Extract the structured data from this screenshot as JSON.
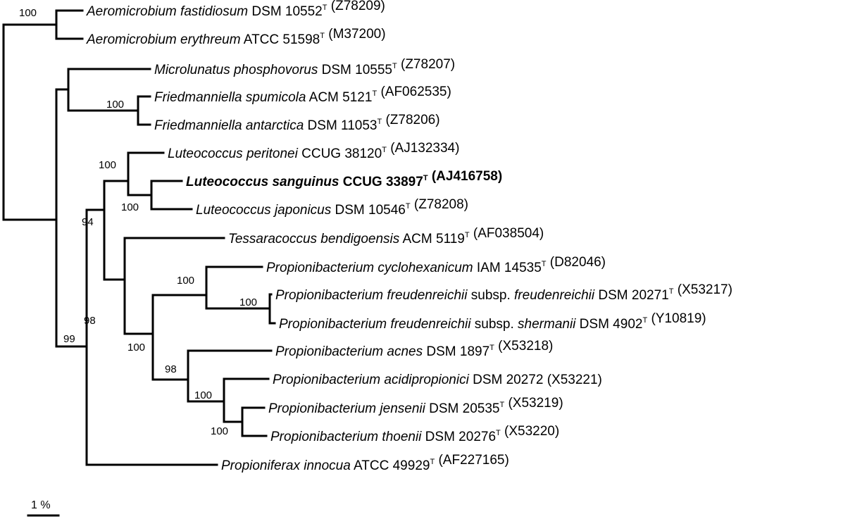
{
  "leaves": [
    {
      "id": "aero_fast",
      "segments": [
        {
          "t": "Aeromicrobium fastidiosum",
          "s": "i"
        },
        {
          "t": " DSM 10552"
        },
        {
          "t": "T",
          "s": "sup"
        },
        {
          "t": " (Z78209)"
        }
      ]
    },
    {
      "id": "aero_ery",
      "segments": [
        {
          "t": "Aeromicrobium erythreum",
          "s": "i"
        },
        {
          "t": " ATCC 51598"
        },
        {
          "t": "T",
          "s": "sup"
        },
        {
          "t": " (M37200)"
        }
      ]
    },
    {
      "id": "micro_phos",
      "segments": [
        {
          "t": "Microlunatus phosphovorus",
          "s": "i"
        },
        {
          "t": " DSM 10555"
        },
        {
          "t": "T",
          "s": "sup"
        },
        {
          "t": " (Z78207)"
        }
      ]
    },
    {
      "id": "fried_spum",
      "segments": [
        {
          "t": "Friedmanniella spumicola",
          "s": "i"
        },
        {
          "t": " ACM 5121"
        },
        {
          "t": "T",
          "s": "sup"
        },
        {
          "t": " (AF062535)"
        }
      ]
    },
    {
      "id": "fried_ant",
      "segments": [
        {
          "t": "Friedmanniella antarctica",
          "s": "i"
        },
        {
          "t": " DSM 11053"
        },
        {
          "t": "T",
          "s": "sup"
        },
        {
          "t": " (Z78206)"
        }
      ]
    },
    {
      "id": "luteo_per",
      "segments": [
        {
          "t": "Luteococcus peritonei",
          "s": "i"
        },
        {
          "t": " CCUG 38120"
        },
        {
          "t": "T",
          "s": "sup"
        },
        {
          "t": " (AJ132334)"
        }
      ]
    },
    {
      "id": "luteo_sang",
      "bold": true,
      "segments": [
        {
          "t": "Luteococcus sanguinus",
          "s": "i"
        },
        {
          "t": " CCUG 33897"
        },
        {
          "t": "T",
          "s": "sup"
        },
        {
          "t": " (AJ416758)"
        }
      ]
    },
    {
      "id": "luteo_jap",
      "segments": [
        {
          "t": "Luteococcus japonicus",
          "s": "i"
        },
        {
          "t": " DSM 10546"
        },
        {
          "t": "T",
          "s": "sup"
        },
        {
          "t": " (Z78208)"
        }
      ]
    },
    {
      "id": "tess_bend",
      "segments": [
        {
          "t": "Tessaracoccus bendigoensis",
          "s": "i"
        },
        {
          "t": " ACM 5119"
        },
        {
          "t": "T",
          "s": "sup"
        },
        {
          "t": " (AF038504)"
        }
      ]
    },
    {
      "id": "prop_cyc",
      "segments": [
        {
          "t": "Propionibacterium cyclohexanicum",
          "s": "i"
        },
        {
          "t": " IAM 14535"
        },
        {
          "t": "T",
          "s": "sup"
        },
        {
          "t": " (D82046)"
        }
      ]
    },
    {
      "id": "prop_freud",
      "segments": [
        {
          "t": "Propionibacterium freudenreichii",
          "s": "i"
        },
        {
          "t": " subsp. "
        },
        {
          "t": "freudenreichii",
          "s": "i"
        },
        {
          "t": " DSM 20271"
        },
        {
          "t": "T",
          "s": "sup"
        },
        {
          "t": " (X53217)"
        }
      ]
    },
    {
      "id": "prop_sherm",
      "segments": [
        {
          "t": "Propionibacterium freudenreichii",
          "s": "i"
        },
        {
          "t": " subsp. "
        },
        {
          "t": "shermanii",
          "s": "i"
        },
        {
          "t": " DSM 4902"
        },
        {
          "t": "T",
          "s": "sup"
        },
        {
          "t": " (Y10819)"
        }
      ]
    },
    {
      "id": "prop_acnes",
      "segments": [
        {
          "t": "Propionibacterium acnes",
          "s": "i"
        },
        {
          "t": " DSM 1897"
        },
        {
          "t": "T",
          "s": "sup"
        },
        {
          "t": " (X53218)"
        }
      ]
    },
    {
      "id": "prop_acidi",
      "segments": [
        {
          "t": "Propionibacterium acidipropionici",
          "s": "i"
        },
        {
          "t": " DSM 20272 (X53221)"
        }
      ]
    },
    {
      "id": "prop_jens",
      "segments": [
        {
          "t": "Propionibacterium jensenii",
          "s": "i"
        },
        {
          "t": " DSM 20535"
        },
        {
          "t": "T",
          "s": "sup"
        },
        {
          "t": " (X53219)"
        }
      ]
    },
    {
      "id": "prop_thoe",
      "segments": [
        {
          "t": "Propionibacterium thoenii",
          "s": "i"
        },
        {
          "t": " DSM 20276"
        },
        {
          "t": "T",
          "s": "sup"
        },
        {
          "t": " (X53220)"
        }
      ]
    },
    {
      "id": "propf_inn",
      "segments": [
        {
          "t": "Propioniferax innocua",
          "s": "i"
        },
        {
          "t": " ATCC 49929"
        },
        {
          "t": "T",
          "s": "sup"
        },
        {
          "t": " (AF227165)"
        }
      ]
    }
  ],
  "bootstraps": {
    "aero": "100",
    "fried": "100",
    "luteo_all": "100",
    "luteo_sj": "100",
    "luteo_prop": "94",
    "prop_big": "98",
    "prop_cyc": "100",
    "prop_freud": "100",
    "prop_main": "100",
    "prop_acnes": "98",
    "prop_acidi": "100",
    "prop_jt": "100",
    "ingroup": "99"
  },
  "scale_bar": {
    "label": "1 %"
  }
}
